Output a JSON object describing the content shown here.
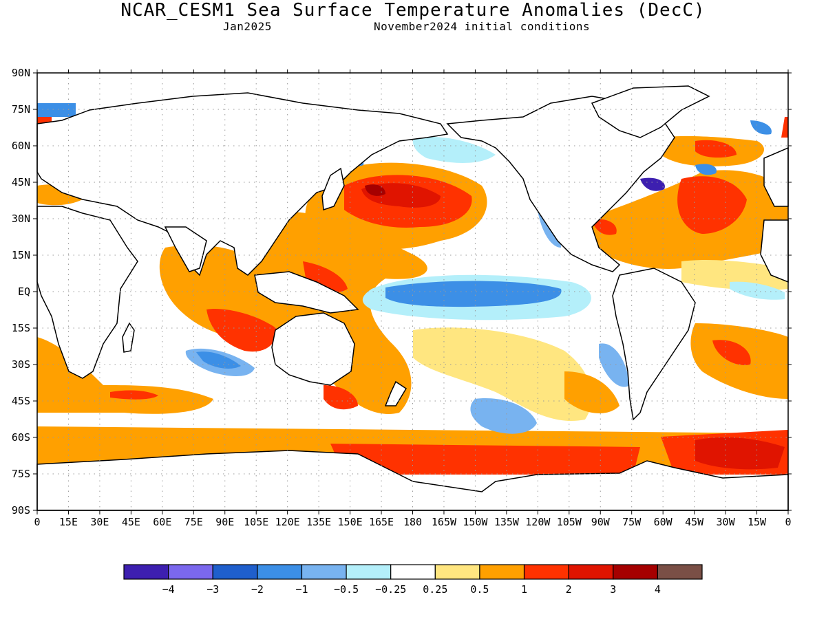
{
  "header": {
    "title": "NCAR_CESM1 Sea Surface Temperature Anomalies (DecC)",
    "valid_month": "Jan2025",
    "initial_conditions": "November2024 initial conditions"
  },
  "map": {
    "lon_ticks": [
      "0",
      "15E",
      "30E",
      "45E",
      "60E",
      "75E",
      "90E",
      "105E",
      "120E",
      "135E",
      "150E",
      "165E",
      "180",
      "165W",
      "150W",
      "135W",
      "120W",
      "105W",
      "90W",
      "75W",
      "60W",
      "45W",
      "30W",
      "15W",
      "0"
    ],
    "lat_ticks": [
      "90N",
      "75N",
      "60N",
      "45N",
      "30N",
      "15N",
      "EQ",
      "15S",
      "30S",
      "45S",
      "60S",
      "75S",
      "90S"
    ],
    "colorbar": {
      "colors": [
        "#3d1fb0",
        "#7b68ee",
        "#1f5fcc",
        "#3c8fe6",
        "#78b3f0",
        "#b4effa",
        "#ffffff",
        "#ffe680",
        "#ffa000",
        "#ff3200",
        "#e01400",
        "#a50000",
        "#7a4f46"
      ],
      "labels": [
        "−4",
        "−3",
        "−2",
        "−1",
        "−0.5",
        "−0.25",
        "0.25",
        "0.5",
        "1",
        "2",
        "3",
        "4"
      ]
    },
    "colors": {
      "land": "#ffffff",
      "coast": "#000000",
      "grid": "#9a9a9a"
    }
  }
}
